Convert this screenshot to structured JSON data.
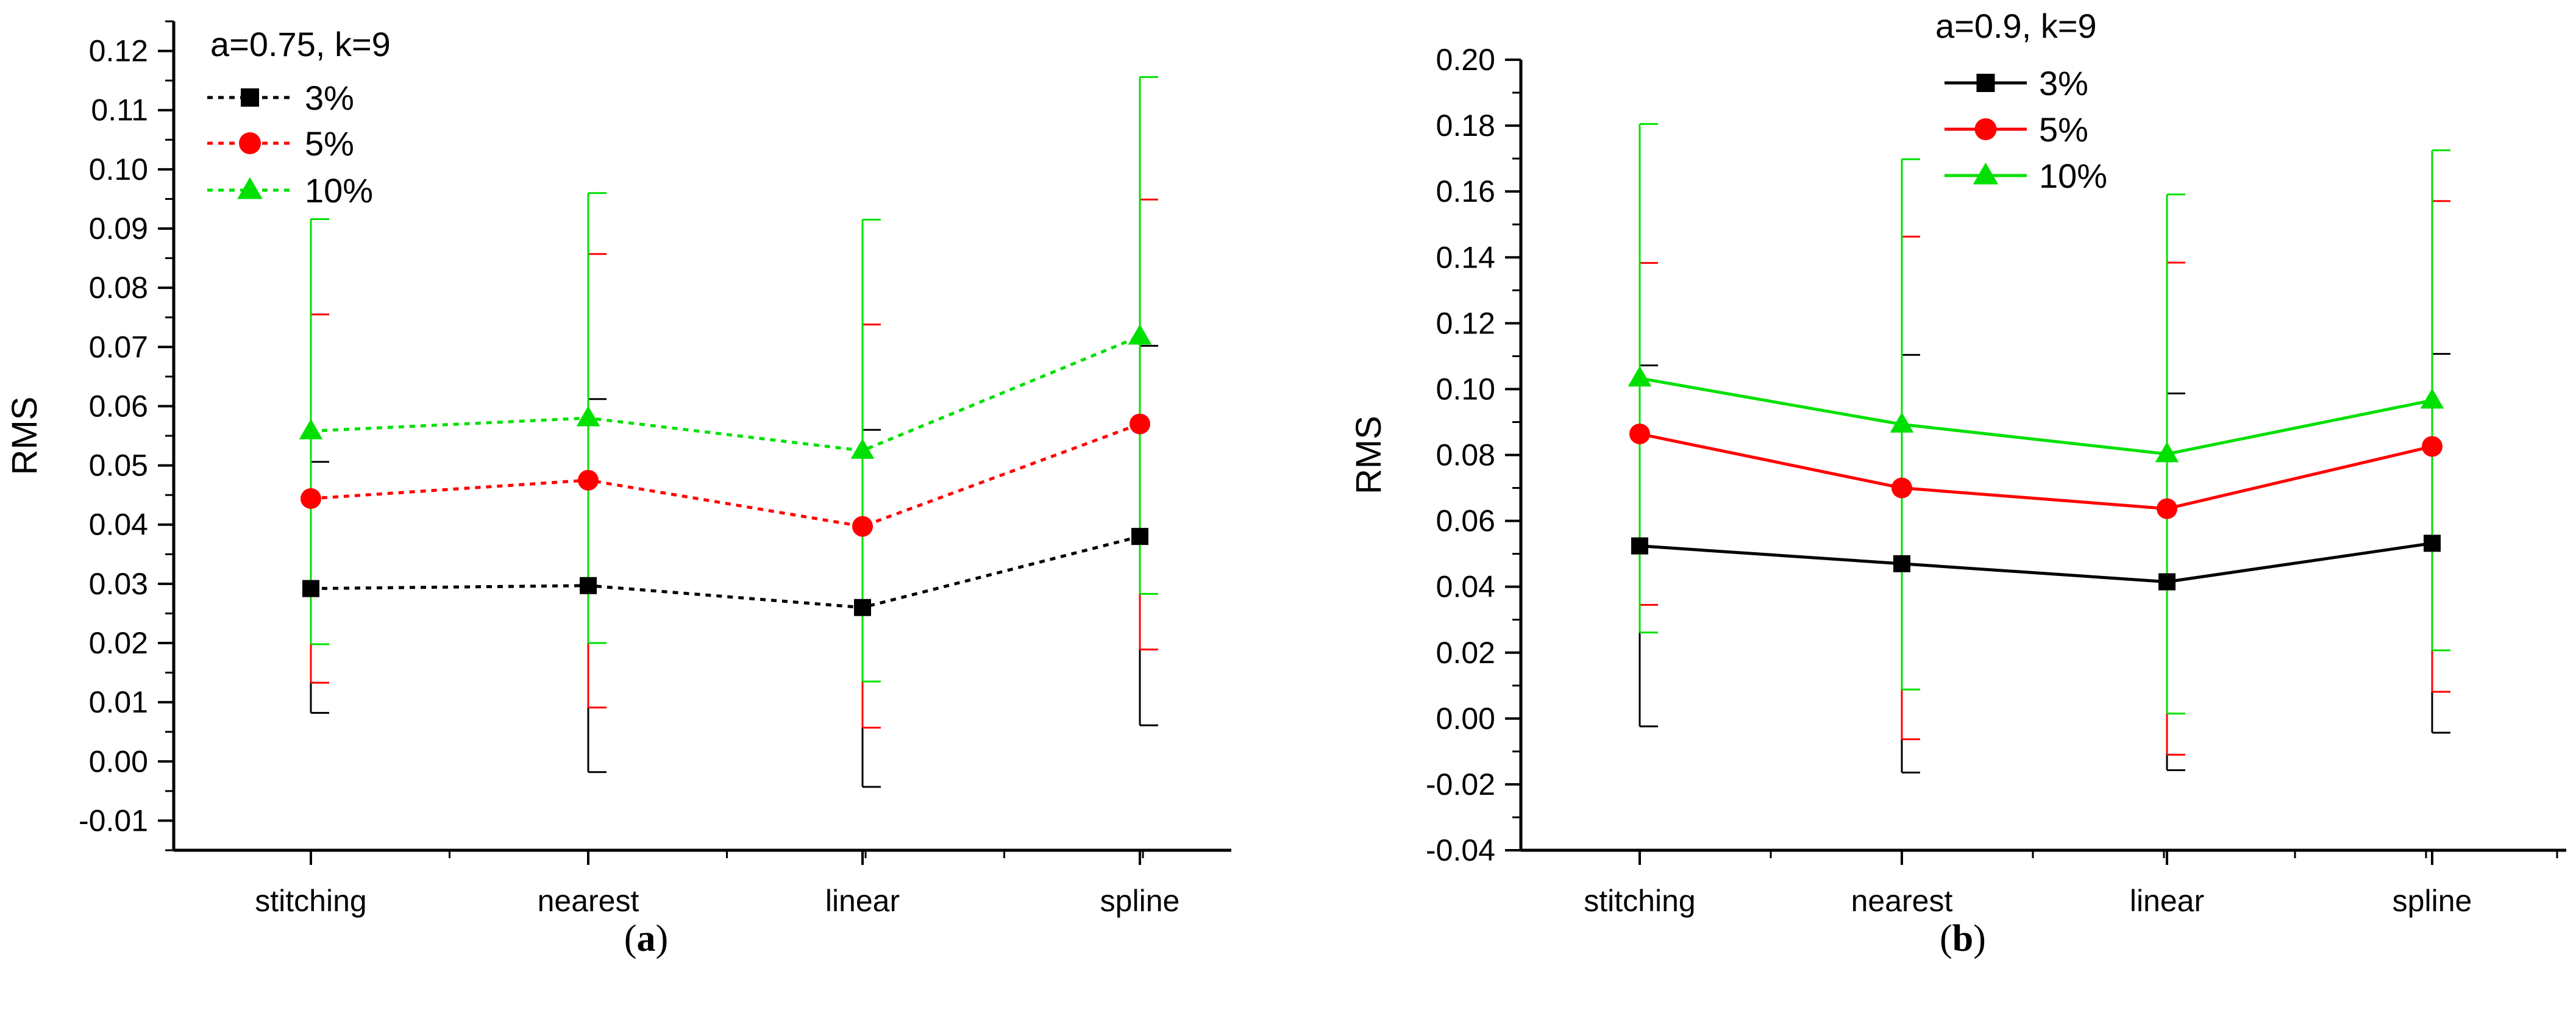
{
  "chart_data": [
    {
      "type": "line",
      "panel_caption": "(a)",
      "panel_caption_bold": "a",
      "title": "",
      "xlabel": "",
      "ylabel": "RMS",
      "categories": [
        "stitching",
        "nearest",
        "linear",
        "spline"
      ],
      "ylim": [
        -0.015,
        0.125
      ],
      "yticks": [
        -0.01,
        0.0,
        0.01,
        0.02,
        0.03,
        0.04,
        0.05,
        0.06,
        0.07,
        0.08,
        0.09,
        0.1,
        0.11,
        0.12
      ],
      "ytick_labels": [
        "-0.01",
        "0.00",
        "0.01",
        "0.02",
        "0.03",
        "0.04",
        "0.05",
        "0.06",
        "0.07",
        "0.08",
        "0.09",
        "0.10",
        "0.11",
        "0.12"
      ],
      "line_style": "dotted",
      "legend_title": "a=0.75, k=9",
      "legend_position": "top-left",
      "series": [
        {
          "name": "3%",
          "color": "#000000",
          "marker": "square",
          "values": [
            0.0292,
            0.0297,
            0.026,
            0.038
          ],
          "err_low": [
            0.0082,
            -0.0018,
            -0.0043,
            0.0061
          ],
          "err_high": [
            0.0506,
            0.0612,
            0.056,
            0.0702
          ]
        },
        {
          "name": "5%",
          "color": "#ff0000",
          "marker": "circle",
          "values": [
            0.0444,
            0.0475,
            0.0397,
            0.057
          ],
          "err_low": [
            0.0133,
            0.0091,
            0.0057,
            0.0189
          ],
          "err_high": [
            0.0755,
            0.0857,
            0.0738,
            0.0949
          ]
        },
        {
          "name": "10%",
          "color": "#00e000",
          "marker": "triangle",
          "values": [
            0.0558,
            0.058,
            0.0525,
            0.0718
          ],
          "err_low": [
            0.0198,
            0.02,
            0.0135,
            0.0283
          ],
          "err_high": [
            0.0916,
            0.096,
            0.0915,
            0.1156
          ]
        }
      ]
    },
    {
      "type": "line",
      "panel_caption": "(b)",
      "panel_caption_bold": "b",
      "title": "",
      "xlabel": "",
      "ylabel": "RMS",
      "categories": [
        "stitching",
        "nearest",
        "linear",
        "spline"
      ],
      "ylim": [
        -0.04,
        0.2
      ],
      "yticks": [
        -0.04,
        -0.02,
        0.0,
        0.02,
        0.04,
        0.06,
        0.08,
        0.1,
        0.12,
        0.14,
        0.16,
        0.18,
        0.2
      ],
      "ytick_labels": [
        "-0.04",
        "-0.02",
        "0.00",
        "0.02",
        "0.04",
        "0.06",
        "0.08",
        "0.10",
        "0.12",
        "0.14",
        "0.16",
        "0.18",
        "0.20"
      ],
      "line_style": "solid",
      "legend_title": "a=0.9, k=9",
      "legend_position": "top-center",
      "series": [
        {
          "name": "3%",
          "color": "#000000",
          "marker": "square",
          "values": [
            0.0524,
            0.047,
            0.0415,
            0.0532
          ],
          "err_low": [
            -0.0024,
            -0.0164,
            -0.0157,
            -0.0043
          ],
          "err_high": [
            0.1072,
            0.1104,
            0.0987,
            0.1107
          ]
        },
        {
          "name": "5%",
          "color": "#ff0000",
          "marker": "circle",
          "values": [
            0.0864,
            0.07,
            0.0637,
            0.0826
          ],
          "err_low": [
            0.0345,
            -0.0063,
            -0.011,
            0.0081
          ],
          "err_high": [
            0.1383,
            0.1463,
            0.1384,
            0.1571
          ]
        },
        {
          "name": "10%",
          "color": "#00e000",
          "marker": "triangle",
          "values": [
            0.1033,
            0.0893,
            0.0803,
            0.0966
          ],
          "err_low": [
            0.0261,
            0.0088,
            0.0015,
            0.0207
          ],
          "err_high": [
            0.1805,
            0.1698,
            0.1591,
            0.1725
          ]
        }
      ]
    }
  ]
}
